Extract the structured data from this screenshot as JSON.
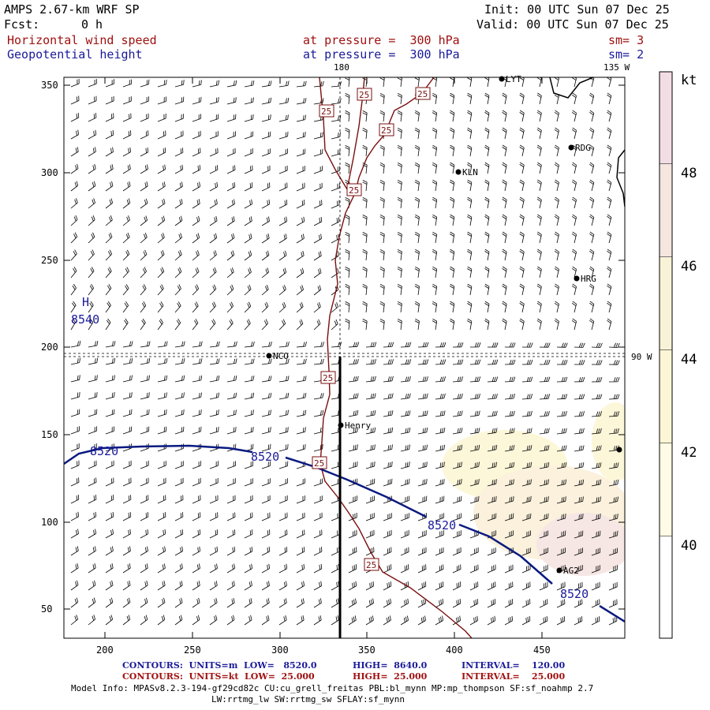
{
  "header": {
    "model": "AMPS 2.67-km WRF SP",
    "fcst_label": "Fcst:",
    "fcst_value": "0 h",
    "init": "Init: 00 UTC Sun 07 Dec 25",
    "valid": "Valid: 00 UTC Sun 07 Dec 25",
    "field1_name": "Horizontal wind speed",
    "field1_level": "at pressure =  300 hPa",
    "field1_sm": "sm= 3",
    "field2_name": "Geopotential height",
    "field2_level": "at pressure =  300 hPa",
    "field2_sm": "sm= 2"
  },
  "map": {
    "x_ticks": [
      "200",
      "250",
      "300",
      "350",
      "400",
      "450"
    ],
    "y_ticks": [
      "350",
      "300",
      "250",
      "200",
      "150",
      "100",
      "50"
    ],
    "meridian_180": "180",
    "meridian_135": "135 W",
    "meridian_90": "90 W",
    "high_marker": "H",
    "high_value": "8540",
    "height_labels": [
      "8520",
      "8520",
      "8520",
      "8520"
    ],
    "speed_labels": [
      "25",
      "25",
      "25",
      "25",
      "25",
      "25",
      "25",
      "25"
    ],
    "stations": [
      "LYT",
      "RDG",
      "KLN",
      "HRG",
      "NCO",
      "Henry",
      "AG2",
      ""
    ]
  },
  "colorbar": {
    "unit": "kt",
    "labels": [
      "48",
      "46",
      "44",
      "42",
      "40"
    ],
    "colors": [
      "#f3dde4",
      "#f5e6e0",
      "#f8f2d8",
      "#fcf6d6",
      "#fffbe6",
      "#ffffff"
    ]
  },
  "footer": {
    "line1_a": "CONTOURS:  UNITS=m  LOW=   8520.0",
    "line1_b": "HIGH=  8640.0",
    "line1_c": "INTERVAL=    120.00",
    "line2_a": "CONTOURS:  UNITS=kt  LOW=  25.000",
    "line2_b": "HIGH=  25.000",
    "line2_c": "INTERVAL=    25.000",
    "model_info": "Model Info: MPASv8.2.3-194-gf29cd82c CU:cu_grell_freitas PBL:bl_mynn MP:mp_thompson SF:sf_noahmp 2.7",
    "model_info2": "LW:rrtmg_lw SW:rrtmg_sw SFLAY:sf_mynn"
  }
}
